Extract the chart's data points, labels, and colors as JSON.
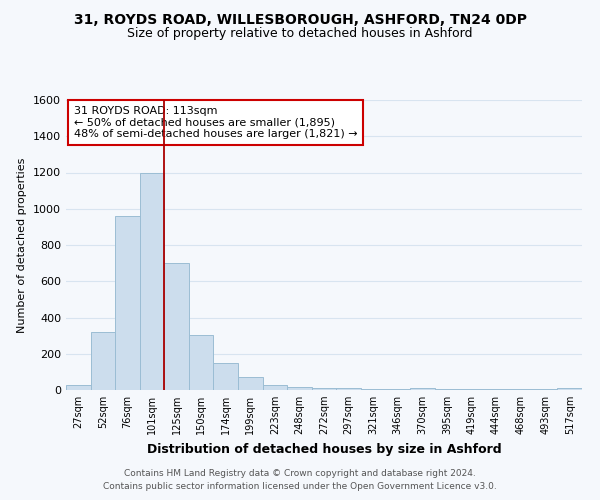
{
  "title1": "31, ROYDS ROAD, WILLESBOROUGH, ASHFORD, TN24 0DP",
  "title2": "Size of property relative to detached houses in Ashford",
  "xlabel": "Distribution of detached houses by size in Ashford",
  "ylabel": "Number of detached properties",
  "categories": [
    "27sqm",
    "52sqm",
    "76sqm",
    "101sqm",
    "125sqm",
    "150sqm",
    "174sqm",
    "199sqm",
    "223sqm",
    "248sqm",
    "272sqm",
    "297sqm",
    "321sqm",
    "346sqm",
    "370sqm",
    "395sqm",
    "419sqm",
    "444sqm",
    "468sqm",
    "493sqm",
    "517sqm"
  ],
  "values": [
    25,
    320,
    960,
    1200,
    700,
    305,
    150,
    70,
    25,
    15,
    10,
    10,
    8,
    5,
    12,
    5,
    3,
    3,
    3,
    3,
    12
  ],
  "bar_color": "#ccdded",
  "bar_edge_color": "#9bbdd4",
  "vline_x": 3.5,
  "vline_color": "#aa0000",
  "annotation_line1": "31 ROYDS ROAD: 113sqm",
  "annotation_line2": "← 50% of detached houses are smaller (1,895)",
  "annotation_line3": "48% of semi-detached houses are larger (1,821) →",
  "annotation_box_facecolor": "#ffffff",
  "annotation_box_edgecolor": "#cc0000",
  "ylim": [
    0,
    1600
  ],
  "yticks": [
    0,
    200,
    400,
    600,
    800,
    1000,
    1200,
    1400,
    1600
  ],
  "footnote1": "Contains HM Land Registry data © Crown copyright and database right 2024.",
  "footnote2": "Contains public sector information licensed under the Open Government Licence v3.0.",
  "bg_color": "#f5f8fc",
  "grid_color": "#d8e4f0",
  "title1_fontsize": 10,
  "title2_fontsize": 9
}
